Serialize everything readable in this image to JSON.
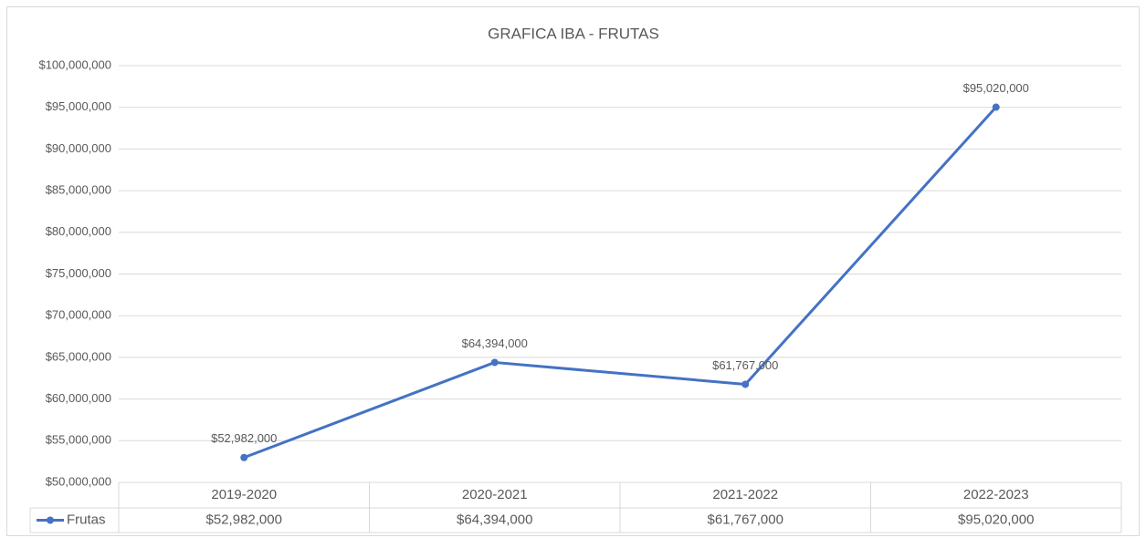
{
  "chart_data": {
    "type": "line",
    "title": "GRAFICA IBA - FRUTAS",
    "categories": [
      "2019-2020",
      "2020-2021",
      "2021-2022",
      "2022-2023"
    ],
    "series": [
      {
        "name": "Frutas",
        "color": "#4472c4",
        "values": [
          52982000,
          64394000,
          61767000,
          95020000
        ],
        "value_labels": [
          "$52,982,000",
          "$64,394,000",
          "$61,767,000",
          "$95,020,000"
        ]
      }
    ],
    "ylim": [
      50000000,
      100000000
    ],
    "yticks": [
      {
        "value": 50000000,
        "label": "$50,000,000"
      },
      {
        "value": 55000000,
        "label": "$55,000,000"
      },
      {
        "value": 60000000,
        "label": "$60,000,000"
      },
      {
        "value": 65000000,
        "label": "$65,000,000"
      },
      {
        "value": 70000000,
        "label": "$70,000,000"
      },
      {
        "value": 75000000,
        "label": "$75,000,000"
      },
      {
        "value": 80000000,
        "label": "$80,000,000"
      },
      {
        "value": 85000000,
        "label": "$85,000,000"
      },
      {
        "value": 90000000,
        "label": "$90,000,000"
      },
      {
        "value": 95000000,
        "label": "$95,000,000"
      },
      {
        "value": 100000000,
        "label": "$100,000,000"
      }
    ],
    "grid": true,
    "data_table": true
  }
}
